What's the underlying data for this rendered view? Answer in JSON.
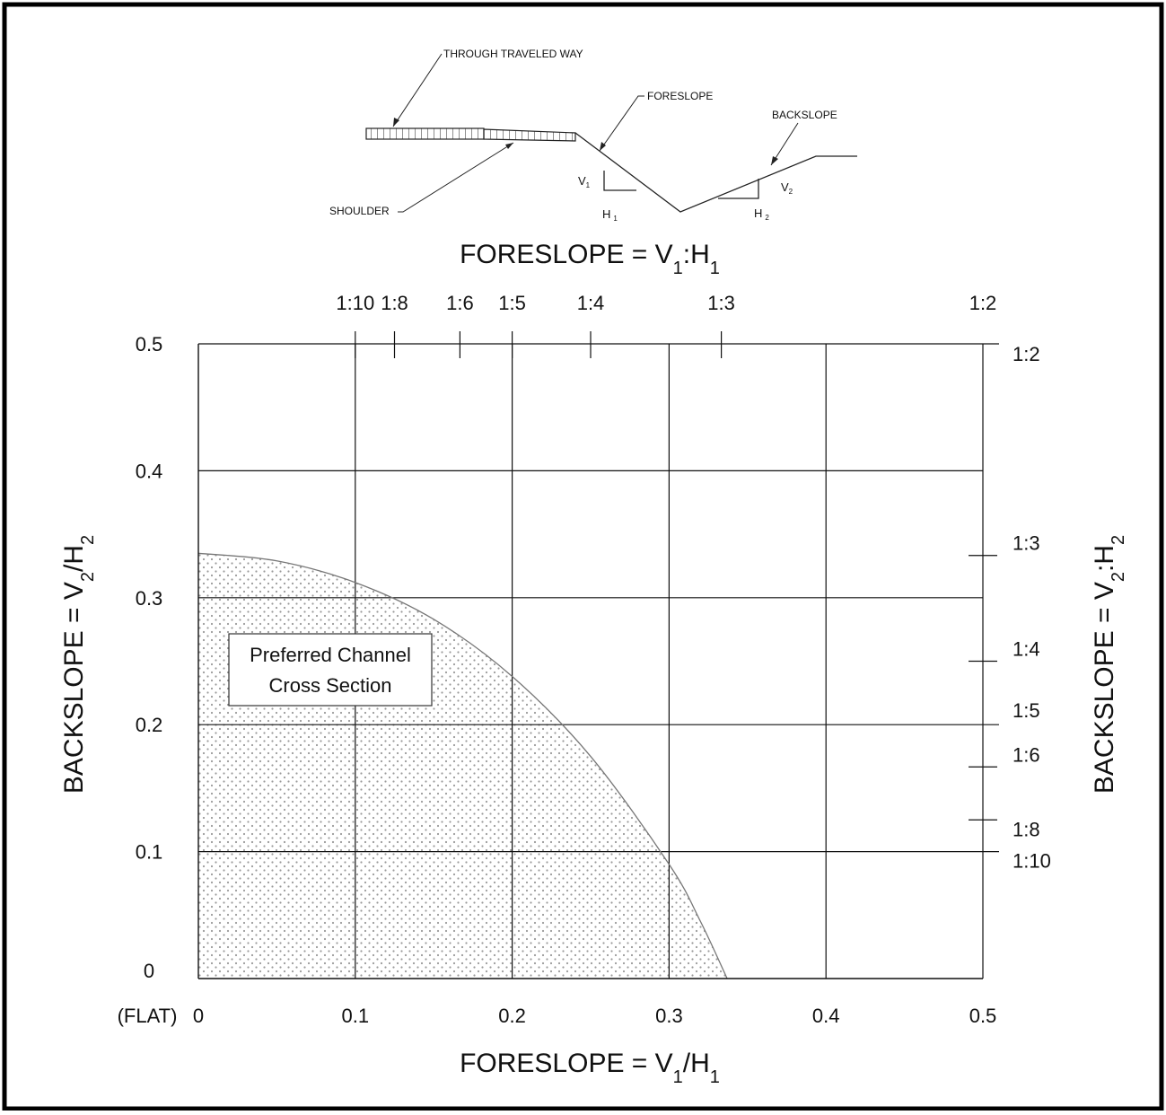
{
  "diagram": {
    "through_traveled_way": "THROUGH TRAVELED WAY",
    "foreslope": "FORESLOPE",
    "backslope": "BACKSLOPE",
    "shoulder": "SHOULDER",
    "v1": "V",
    "v1_sub": "1",
    "h1": "H",
    "h1_sub": "1",
    "v2": "V",
    "v2_sub": "2",
    "h2": "H",
    "h2_sub": "2"
  },
  "region_label_line1": "Preferred Channel",
  "region_label_line2": "Cross Section",
  "chart_data": {
    "type": "area",
    "title": {
      "prefix": "FORESLOPE = V",
      "sub1": "1",
      "mid": ":H",
      "sub2": "1"
    },
    "xlabel": {
      "prefix": "FORESLOPE = V",
      "sub1": "1",
      "mid": "/H",
      "sub2": "1"
    },
    "ylabel_left": {
      "prefix": "BACKSLOPE = V",
      "sub1": "2",
      "mid": "/H",
      "sub2": "2"
    },
    "ylabel_right": {
      "prefix": "BACKSLOPE = V",
      "sub1": "2",
      "mid": ":H",
      "sub2": "2"
    },
    "xlim": [
      0,
      0.5
    ],
    "ylim": [
      0,
      0.5
    ],
    "grid": true,
    "x_ticks": [
      {
        "value": 0,
        "label": "0"
      },
      {
        "value": 0.1,
        "label": "0.1"
      },
      {
        "value": 0.2,
        "label": "0.2"
      },
      {
        "value": 0.3,
        "label": "0.3"
      },
      {
        "value": 0.4,
        "label": "0.4"
      },
      {
        "value": 0.5,
        "label": "0.5"
      }
    ],
    "x_origin_note": "(FLAT)",
    "y_ticks": [
      {
        "value": 0,
        "label": "0"
      },
      {
        "value": 0.1,
        "label": "0.1"
      },
      {
        "value": 0.2,
        "label": "0.2"
      },
      {
        "value": 0.3,
        "label": "0.3"
      },
      {
        "value": 0.4,
        "label": "0.4"
      },
      {
        "value": 0.5,
        "label": "0.5"
      }
    ],
    "top_ratio_ticks": [
      {
        "value": 0.1,
        "label": "1:10"
      },
      {
        "value": 0.125,
        "label": "1:8"
      },
      {
        "value": 0.1667,
        "label": "1:6"
      },
      {
        "value": 0.2,
        "label": "1:5"
      },
      {
        "value": 0.25,
        "label": "1:4"
      },
      {
        "value": 0.3333,
        "label": "1:3"
      },
      {
        "value": 0.5,
        "label": "1:2"
      }
    ],
    "right_ratio_ticks": [
      {
        "value": 0.5,
        "label": "1:2"
      },
      {
        "value": 0.3333,
        "label": "1:3"
      },
      {
        "value": 0.25,
        "label": "1:4"
      },
      {
        "value": 0.2,
        "label": "1:5"
      },
      {
        "value": 0.1667,
        "label": "1:6"
      },
      {
        "value": 0.125,
        "label": "1:8"
      },
      {
        "value": 0.1,
        "label": "1:10"
      }
    ],
    "boundary_curve": {
      "name": "",
      "x": [
        0,
        0.05,
        0.1,
        0.15,
        0.2,
        0.25,
        0.3,
        0.32,
        0.337
      ],
      "y": [
        0.335,
        0.329,
        0.312,
        0.283,
        0.238,
        0.175,
        0.09,
        0.045,
        0.0
      ]
    }
  }
}
